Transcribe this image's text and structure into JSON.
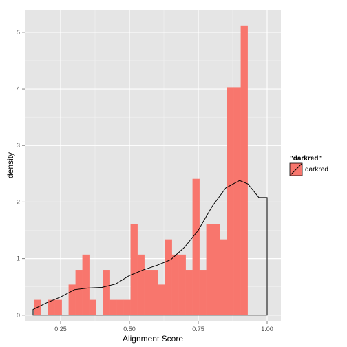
{
  "chart_data": {
    "type": "histogram",
    "xlabel": "Alignment Score",
    "ylabel": "density",
    "xlim": [
      0.12,
      1.05
    ],
    "ylim": [
      -0.1,
      5.4
    ],
    "x_ticks": [
      0.25,
      0.5,
      0.75,
      1.0
    ],
    "x_tick_labels": [
      "0.25",
      "0.50",
      "0.75",
      "1.00"
    ],
    "y_ticks": [
      0,
      1,
      2,
      3,
      4,
      5
    ],
    "y_tick_labels": [
      "0",
      "1",
      "2",
      "3",
      "4",
      "5"
    ],
    "bar_fill": "#F8766D",
    "panel_bg": "#E5E5E5",
    "grid": true,
    "bins": [
      {
        "x0": 0.154,
        "x1": 0.179,
        "density": 0.27
      },
      {
        "x0": 0.179,
        "x1": 0.204,
        "density": 0
      },
      {
        "x0": 0.204,
        "x1": 0.229,
        "density": 0.27
      },
      {
        "x0": 0.229,
        "x1": 0.254,
        "density": 0.27
      },
      {
        "x0": 0.254,
        "x1": 0.279,
        "density": 0
      },
      {
        "x0": 0.279,
        "x1": 0.304,
        "density": 0.54
      },
      {
        "x0": 0.304,
        "x1": 0.329,
        "density": 0.8
      },
      {
        "x0": 0.329,
        "x1": 0.354,
        "density": 1.07
      },
      {
        "x0": 0.354,
        "x1": 0.379,
        "density": 0.27
      },
      {
        "x0": 0.379,
        "x1": 0.404,
        "density": 0
      },
      {
        "x0": 0.404,
        "x1": 0.429,
        "density": 0.8
      },
      {
        "x0": 0.429,
        "x1": 0.454,
        "density": 0.27
      },
      {
        "x0": 0.454,
        "x1": 0.479,
        "density": 0.27
      },
      {
        "x0": 0.479,
        "x1": 0.504,
        "density": 0.27
      },
      {
        "x0": 0.504,
        "x1": 0.529,
        "density": 1.61
      },
      {
        "x0": 0.529,
        "x1": 0.554,
        "density": 1.07
      },
      {
        "x0": 0.554,
        "x1": 0.579,
        "density": 0.8
      },
      {
        "x0": 0.579,
        "x1": 0.604,
        "density": 0.8
      },
      {
        "x0": 0.604,
        "x1": 0.629,
        "density": 0.54
      },
      {
        "x0": 0.629,
        "x1": 0.654,
        "density": 1.34
      },
      {
        "x0": 0.654,
        "x1": 0.679,
        "density": 1.07
      },
      {
        "x0": 0.679,
        "x1": 0.704,
        "density": 1.07
      },
      {
        "x0": 0.704,
        "x1": 0.729,
        "density": 0.8
      },
      {
        "x0": 0.729,
        "x1": 0.754,
        "density": 2.41
      },
      {
        "x0": 0.754,
        "x1": 0.779,
        "density": 0.8
      },
      {
        "x0": 0.779,
        "x1": 0.804,
        "density": 1.61
      },
      {
        "x0": 0.804,
        "x1": 0.829,
        "density": 1.61
      },
      {
        "x0": 0.829,
        "x1": 0.854,
        "density": 1.34
      },
      {
        "x0": 0.854,
        "x1": 0.879,
        "density": 4.02
      },
      {
        "x0": 0.879,
        "x1": 0.904,
        "density": 4.02
      },
      {
        "x0": 0.904,
        "x1": 0.929,
        "density": 5.11
      }
    ],
    "density_curve": {
      "x": [
        0.15,
        0.2,
        0.25,
        0.3,
        0.35,
        0.4,
        0.45,
        0.5,
        0.55,
        0.6,
        0.65,
        0.7,
        0.75,
        0.8,
        0.85,
        0.9,
        0.93,
        0.95,
        0.97,
        1.0
      ],
      "y": [
        0.1,
        0.22,
        0.32,
        0.45,
        0.48,
        0.49,
        0.55,
        0.7,
        0.8,
        0.88,
        0.98,
        1.2,
        1.5,
        1.92,
        2.25,
        2.38,
        2.32,
        2.2,
        2.08,
        2.08
      ]
    },
    "legend": {
      "title": "\"darkred\"",
      "label": "darkred",
      "position": "right"
    }
  }
}
